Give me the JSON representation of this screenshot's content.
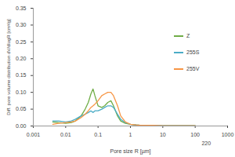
{
  "chart_data": {
    "type": "line",
    "xlabel": "Pore size R [µm]",
    "ylabel": "Diff. pore volume distribution dV/dlogR [cm³/g]",
    "log": "x",
    "grid": false,
    "legend": "right",
    "x": [
      0.004,
      0.006,
      0.01,
      0.015,
      0.02,
      0.03,
      0.04,
      0.05,
      0.06,
      0.07,
      0.08,
      0.1,
      0.13,
      0.16,
      0.2,
      0.25,
      0.3,
      0.4,
      0.5,
      0.7,
      1,
      1.5,
      2,
      5,
      10,
      50,
      100
    ],
    "series": [
      {
        "name": "Z",
        "color": "#70ad47",
        "values": [
          0.012,
          0.01,
          0.008,
          0.01,
          0.015,
          0.03,
          0.05,
          0.07,
          0.095,
          0.11,
          0.09,
          0.06,
          0.055,
          0.06,
          0.07,
          0.075,
          0.06,
          0.03,
          0.015,
          0.008,
          0.005,
          0.003,
          0.002,
          0.002,
          0.001,
          0.001,
          0.001
        ]
      },
      {
        "name": "255S",
        "color": "#4bacc6",
        "values": [
          0.015,
          0.015,
          0.012,
          0.015,
          0.02,
          0.03,
          0.035,
          0.04,
          0.045,
          0.04,
          0.045,
          0.045,
          0.05,
          0.055,
          0.06,
          0.06,
          0.055,
          0.035,
          0.02,
          0.01,
          0.005,
          0.003,
          0.002,
          0.002,
          0.001,
          0.001,
          0.001
        ]
      },
      {
        "name": "255V",
        "color": "#f79646",
        "values": [
          0.005,
          0.008,
          0.01,
          0.012,
          0.015,
          0.025,
          0.035,
          0.045,
          0.055,
          0.06,
          0.065,
          0.075,
          0.09,
          0.095,
          0.1,
          0.1,
          0.09,
          0.06,
          0.03,
          0.012,
          0.005,
          0.003,
          0.002,
          0.002,
          0.001,
          0.001,
          0.001
        ]
      }
    ],
    "xlim": [
      0.001,
      1000
    ],
    "xticks": [
      0.001,
      0.01,
      0.1,
      1,
      10,
      100,
      1000
    ],
    "ylim": [
      0,
      0.35
    ],
    "yticks": [
      {
        "value": 0,
        "label": "0.00"
      },
      {
        "value": 0.05,
        "label": "0.05"
      },
      {
        "value": 0.1,
        "label": "0.10"
      },
      {
        "value": 0.15,
        "label": "0.15"
      },
      {
        "value": 0.2,
        "label": "0.20"
      },
      {
        "value": 0.25,
        "label": "0.25"
      },
      {
        "value": 0.3,
        "label": "0.30"
      },
      {
        "value": 0.35,
        "label": "0.35"
      }
    ],
    "annotations": [
      {
        "x": 220,
        "text": "220"
      }
    ]
  }
}
